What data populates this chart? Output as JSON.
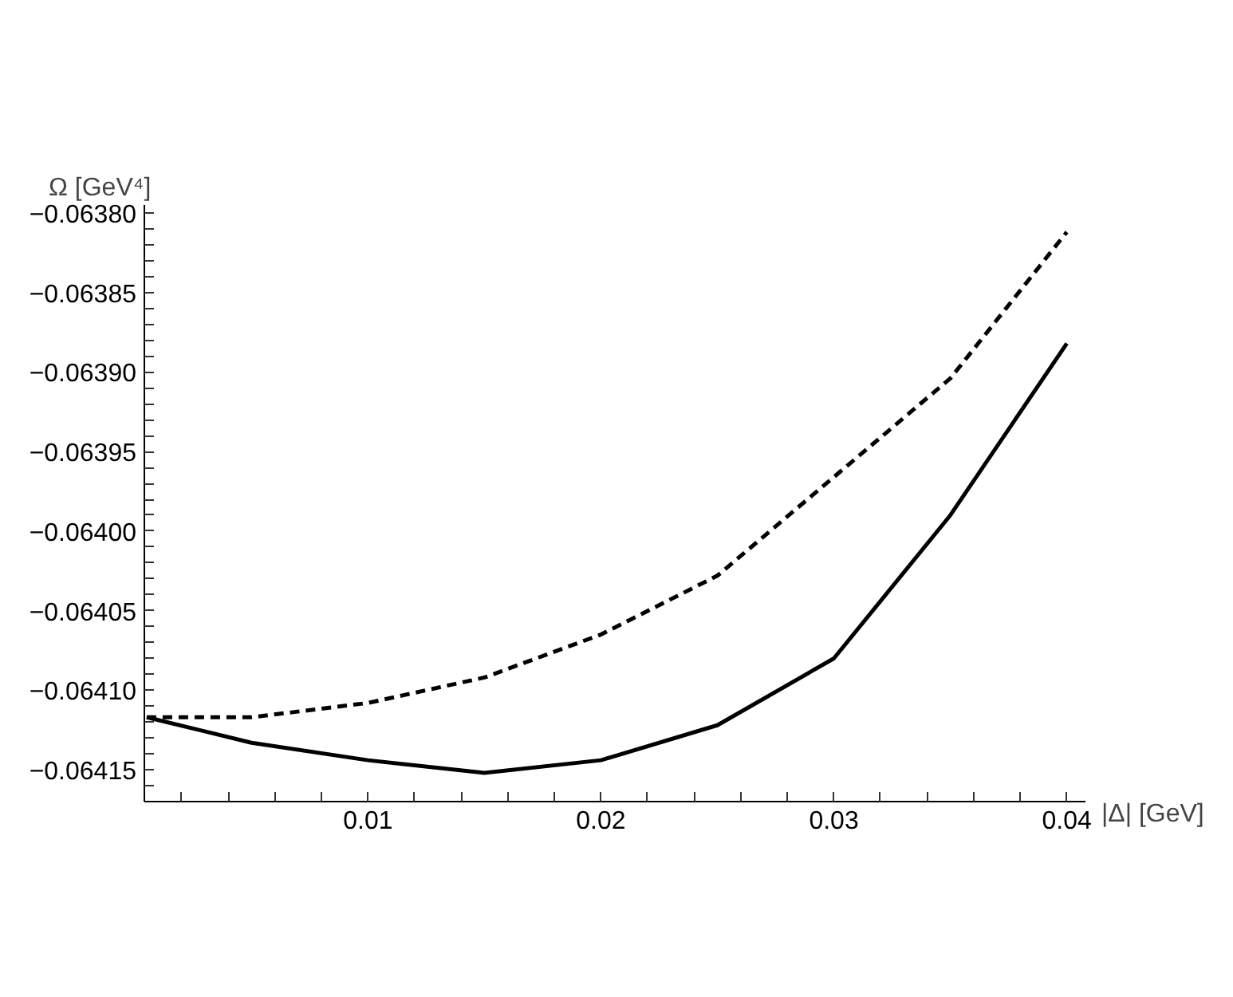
{
  "chart_data": {
    "type": "line",
    "xlabel": "|Δ| [GeV]",
    "ylabel": "Ω [GeV⁴]",
    "x": [
      0.0005,
      0.005,
      0.01,
      0.015,
      0.02,
      0.025,
      0.03,
      0.035,
      0.04
    ],
    "series": [
      {
        "color": "#000000",
        "line_style": "solid",
        "values": [
          -0.064117,
          -0.064133,
          -0.064144,
          -0.064152,
          -0.064144,
          -0.064122,
          -0.06408,
          -0.06399,
          -0.063882
        ]
      },
      {
        "color": "#000000",
        "line_style": "dashed",
        "values": [
          -0.064117,
          -0.064117,
          -0.064108,
          -0.064092,
          -0.064065,
          -0.064028,
          -0.063966,
          -0.063904,
          -0.063812
        ]
      }
    ],
    "xlim": [
      0.0004,
      0.0408
    ],
    "ylim": [
      -0.06417,
      -0.063795
    ],
    "xticks": [
      {
        "value": 0.002,
        "label": null
      },
      {
        "value": 0.004,
        "label": null
      },
      {
        "value": 0.006,
        "label": null
      },
      {
        "value": 0.008,
        "label": null
      },
      0.01,
      {
        "value": 0.012,
        "label": null
      },
      {
        "value": 0.014,
        "label": null
      },
      {
        "value": 0.016,
        "label": null
      },
      {
        "value": 0.018,
        "label": null
      },
      0.02,
      {
        "value": 0.022,
        "label": null
      },
      {
        "value": 0.024,
        "label": null
      },
      {
        "value": 0.026,
        "label": null
      },
      {
        "value": 0.028,
        "label": null
      },
      0.03,
      {
        "value": 0.032,
        "label": null
      },
      {
        "value": 0.034,
        "label": null
      },
      {
        "value": 0.036,
        "label": null
      },
      {
        "value": 0.038,
        "label": null
      },
      0.04
    ],
    "yticks": [
      {
        "value": -0.06416,
        "label": null
      },
      {
        "value": -0.06415,
        "label": "−0.06415"
      },
      {
        "value": -0.06414,
        "label": null
      },
      {
        "value": -0.06413,
        "label": null
      },
      {
        "value": -0.06412,
        "label": null
      },
      {
        "value": -0.06411,
        "label": null
      },
      {
        "value": -0.0641,
        "label": "−0.06410"
      },
      {
        "value": -0.06409,
        "label": null
      },
      {
        "value": -0.06408,
        "label": null
      },
      {
        "value": -0.06407,
        "label": null
      },
      {
        "value": -0.06406,
        "label": null
      },
      {
        "value": -0.06405,
        "label": "−0.06405"
      },
      {
        "value": -0.06404,
        "label": null
      },
      {
        "value": -0.06403,
        "label": null
      },
      {
        "value": -0.06402,
        "label": null
      },
      {
        "value": -0.06401,
        "label": null
      },
      {
        "value": -0.064,
        "label": "−0.06400"
      },
      {
        "value": -0.06399,
        "label": null
      },
      {
        "value": -0.06398,
        "label": null
      },
      {
        "value": -0.06397,
        "label": null
      },
      {
        "value": -0.06396,
        "label": null
      },
      {
        "value": -0.06395,
        "label": "−0.06395"
      },
      {
        "value": -0.06394,
        "label": null
      },
      {
        "value": -0.06393,
        "label": null
      },
      {
        "value": -0.06392,
        "label": null
      },
      {
        "value": -0.06391,
        "label": null
      },
      {
        "value": -0.0639,
        "label": "−0.06390"
      },
      {
        "value": -0.06389,
        "label": null
      },
      {
        "value": -0.06388,
        "label": null
      },
      {
        "value": -0.06387,
        "label": null
      },
      {
        "value": -0.06386,
        "label": null
      },
      {
        "value": -0.06385,
        "label": "−0.06385"
      },
      {
        "value": -0.06384,
        "label": null
      },
      {
        "value": -0.06383,
        "label": null
      },
      {
        "value": -0.06382,
        "label": null
      },
      {
        "value": -0.06381,
        "label": null
      },
      {
        "value": -0.0638,
        "label": "−0.06380"
      }
    ],
    "grid": false
  }
}
